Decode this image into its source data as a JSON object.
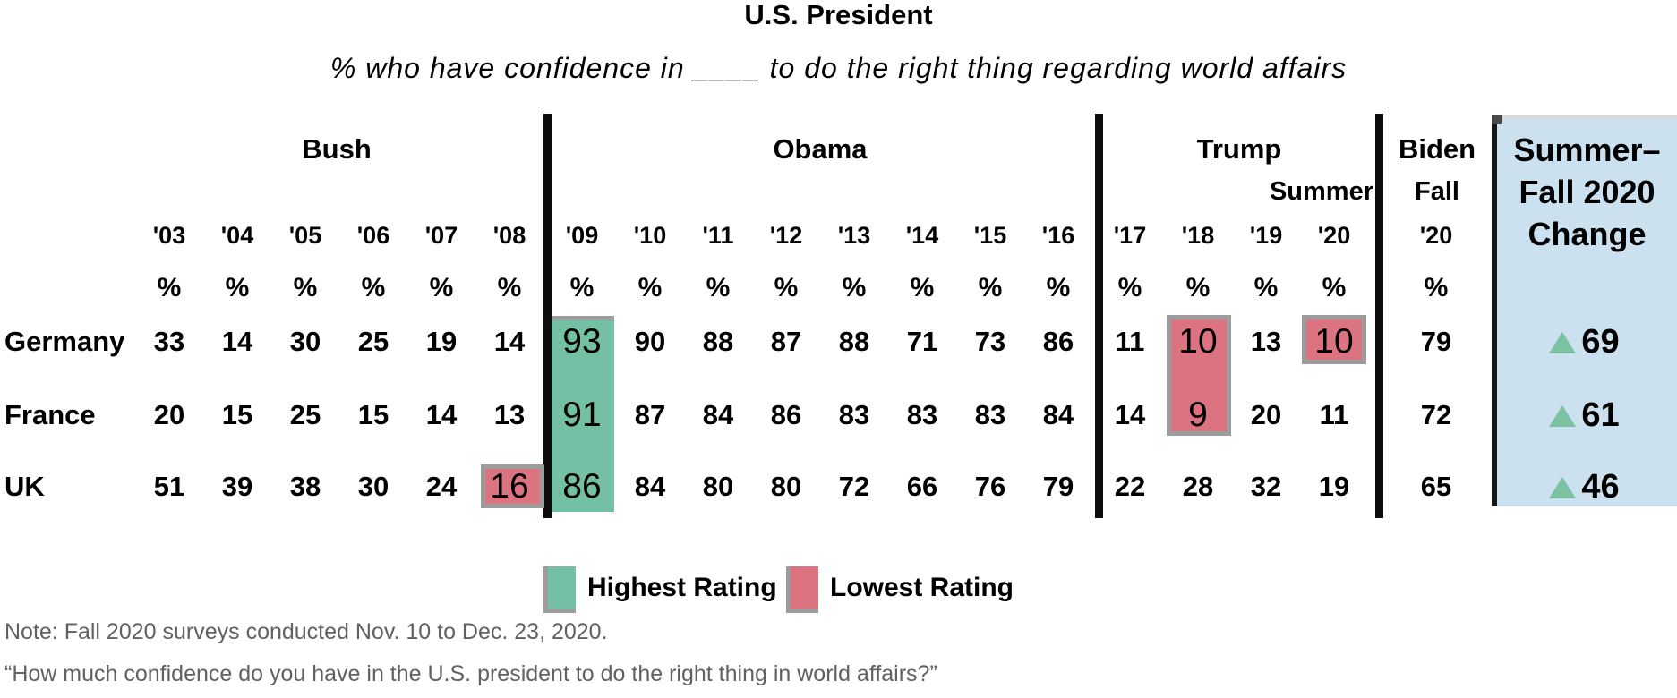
{
  "title": "U.S. President",
  "subtitle": "% who have confidence in ____ to do the right thing regarding world affairs",
  "table": {
    "percent_sign": "%",
    "row_labels": [
      "Germany",
      "France",
      "UK"
    ],
    "groups": [
      {
        "label": "Bush",
        "years": [
          "'03",
          "'04",
          "'05",
          "'06",
          "'07",
          "'08"
        ],
        "rows": [
          [
            "33",
            "14",
            "30",
            "25",
            "19",
            "14"
          ],
          [
            "20",
            "15",
            "25",
            "15",
            "14",
            "13"
          ],
          [
            "51",
            "39",
            "38",
            "30",
            "24",
            "16"
          ]
        ]
      },
      {
        "label": "Obama",
        "years": [
          "'09",
          "'10",
          "'11",
          "'12",
          "'13",
          "'14",
          "'15",
          "'16"
        ],
        "rows": [
          [
            "93",
            "90",
            "88",
            "87",
            "88",
            "71",
            "73",
            "86"
          ],
          [
            "91",
            "87",
            "84",
            "86",
            "83",
            "83",
            "83",
            "84"
          ],
          [
            "86",
            "84",
            "80",
            "80",
            "72",
            "66",
            "76",
            "79"
          ]
        ]
      },
      {
        "label": "Trump",
        "sublabel": "Summer",
        "years": [
          "'17",
          "'18",
          "'19",
          "'20"
        ],
        "rows": [
          [
            "11",
            "10",
            "13",
            "10"
          ],
          [
            "14",
            "9",
            "20",
            "11"
          ],
          [
            "22",
            "28",
            "32",
            "19"
          ]
        ]
      },
      {
        "label": "Biden",
        "sublabel": "Fall",
        "years": [
          "'20"
        ],
        "rows": [
          [
            "79"
          ],
          [
            "72"
          ],
          [
            "65"
          ]
        ]
      }
    ]
  },
  "change_panel": {
    "heading_lines": [
      "Summer–",
      "Fall 2020",
      "Change"
    ],
    "direction": "up",
    "values": [
      "69",
      "61",
      "46"
    ]
  },
  "legend": {
    "highest": "Highest Rating",
    "lowest": "Lowest Rating"
  },
  "notes": [
    "Note: Fall 2020 surveys conducted Nov. 10 to Dec. 23, 2020.",
    "“How much confidence do you have in the U.S. president to do the right thing in world affairs?”"
  ],
  "colors": {
    "highest_green": "#74c0a4",
    "lowest_red": "#db7480",
    "panel_blue": "#cce1f0",
    "triangle_green": "#7cc2a2",
    "cell_border_gray": "#9c9c9c"
  },
  "chart_data": {
    "type": "table",
    "title": "U.S. President",
    "subtitle": "% who have confidence in ____ to do the right thing regarding world affairs",
    "column_groups": [
      "Bush",
      "Obama",
      "Trump",
      "Biden"
    ],
    "x": [
      "2003",
      "2004",
      "2005",
      "2006",
      "2007",
      "2008",
      "2009",
      "2010",
      "2011",
      "2012",
      "2013",
      "2014",
      "2015",
      "2016",
      "2017",
      "2018",
      "2019",
      "2020 Summer",
      "2020 Fall (Biden)"
    ],
    "series": [
      {
        "name": "Germany",
        "values": [
          33,
          14,
          30,
          25,
          19,
          14,
          93,
          90,
          88,
          87,
          88,
          71,
          73,
          86,
          11,
          10,
          13,
          10,
          79
        ],
        "highest": 93,
        "lowest": 10,
        "summer_fall_2020_change": 69
      },
      {
        "name": "France",
        "values": [
          20,
          15,
          25,
          15,
          14,
          13,
          91,
          87,
          84,
          86,
          83,
          83,
          83,
          84,
          14,
          9,
          20,
          11,
          72
        ],
        "highest": 91,
        "lowest": 9,
        "summer_fall_2020_change": 61
      },
      {
        "name": "UK",
        "values": [
          51,
          39,
          38,
          30,
          24,
          16,
          86,
          84,
          80,
          80,
          72,
          66,
          76,
          79,
          22,
          28,
          32,
          19,
          65
        ],
        "highest": 86,
        "lowest": 16,
        "summer_fall_2020_change": 46
      }
    ],
    "legend": [
      "Highest Rating",
      "Lowest Rating"
    ],
    "legend_position": "bottom"
  }
}
